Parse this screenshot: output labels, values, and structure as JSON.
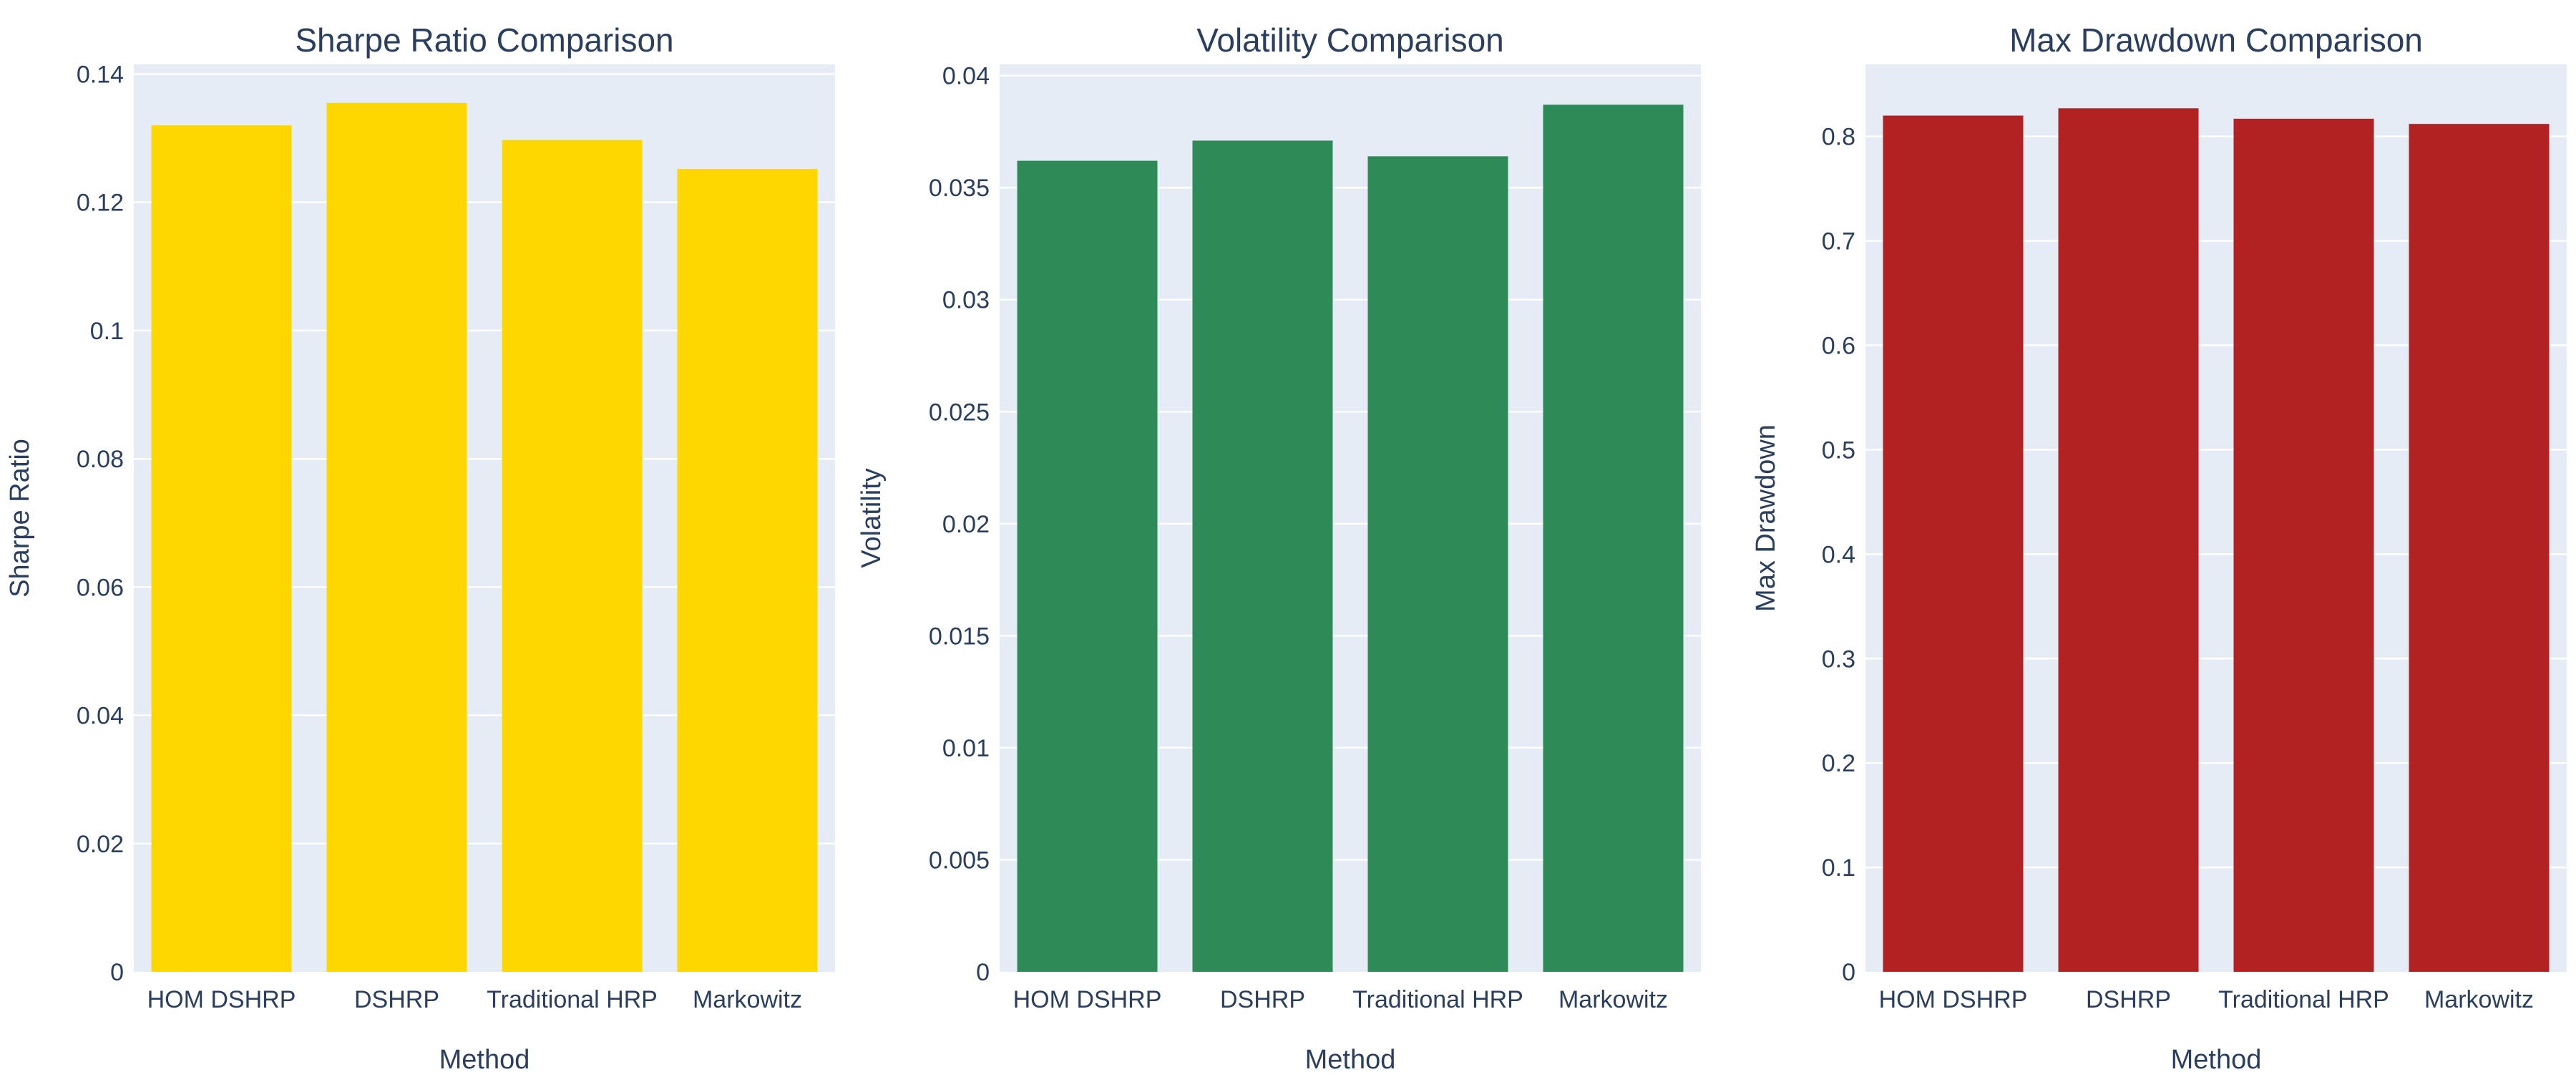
{
  "chart_data": [
    {
      "type": "bar",
      "title": "Sharpe Ratio Comparison",
      "xlabel": "Method",
      "ylabel": "Sharpe Ratio",
      "categories": [
        "HOM DSHRP",
        "DSHRP",
        "Traditional HRP",
        "Markowitz"
      ],
      "values": [
        0.132,
        0.1355,
        0.1297,
        0.1252
      ],
      "ylim": [
        0,
        0.1415
      ],
      "yticks": [
        0,
        0.02,
        0.04,
        0.06,
        0.08,
        0.1,
        0.12,
        0.14
      ],
      "ytick_labels": [
        "0",
        "0.02",
        "0.04",
        "0.06",
        "0.08",
        "0.1",
        "0.12",
        "0.14"
      ],
      "color": "#FFD700",
      "grid": true,
      "legend": "none"
    },
    {
      "type": "bar",
      "title": "Volatility Comparison",
      "xlabel": "Method",
      "ylabel": "Volatility",
      "categories": [
        "HOM DSHRP",
        "DSHRP",
        "Traditional HRP",
        "Markowitz"
      ],
      "values": [
        0.0362,
        0.0371,
        0.0364,
        0.0387
      ],
      "ylim": [
        0,
        0.0405
      ],
      "yticks": [
        0,
        0.005,
        0.01,
        0.015,
        0.02,
        0.025,
        0.03,
        0.035,
        0.04
      ],
      "ytick_labels": [
        "0",
        "0.005",
        "0.01",
        "0.015",
        "0.02",
        "0.025",
        "0.03",
        "0.035",
        "0.04"
      ],
      "color": "#2E8B57",
      "grid": true,
      "legend": "none"
    },
    {
      "type": "bar",
      "title": "Max Drawdown Comparison",
      "xlabel": "Method",
      "ylabel": "Max Drawdown",
      "categories": [
        "HOM DSHRP",
        "DSHRP",
        "Traditional HRP",
        "Markowitz"
      ],
      "values": [
        0.82,
        0.827,
        0.817,
        0.812
      ],
      "ylim": [
        0,
        0.869
      ],
      "yticks": [
        0,
        0.1,
        0.2,
        0.3,
        0.4,
        0.5,
        0.6,
        0.7,
        0.8
      ],
      "ytick_labels": [
        "0",
        "0.1",
        "0.2",
        "0.3",
        "0.4",
        "0.5",
        "0.6",
        "0.7",
        "0.8"
      ],
      "color": "#B22222",
      "grid": true,
      "legend": "none"
    }
  ],
  "colors": {
    "plot_background": "#E5ECF6",
    "gridline": "#FFFFFF",
    "text": "#2A3F5F"
  }
}
